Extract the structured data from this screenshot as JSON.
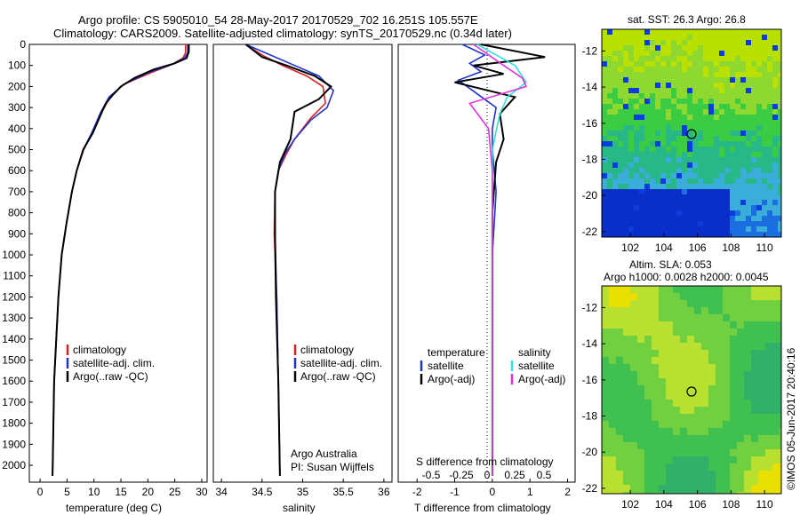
{
  "header": {
    "line1": "Argo profile: CS 5905010_54 28-May-2017 20170529_702 16.251S 105.557E",
    "line2": "Climatology: CARS2009. Satellite-adjusted climatology: synTS_20170529.nc (0.34d later)"
  },
  "chart_data": [
    {
      "type": "line",
      "panel": "temperature",
      "xlabel": "temperature (deg C)",
      "ylabel": "",
      "xlim": [
        -2,
        31
      ],
      "ylim": [
        2080,
        0
      ],
      "y_reversed": true,
      "x_ticks": [
        "0",
        "5",
        "10",
        "15",
        "20",
        "25",
        "30"
      ],
      "y_ticks": [
        "0",
        "100",
        "200",
        "300",
        "400",
        "500",
        "600",
        "700",
        "800",
        "900",
        "1000",
        "1100",
        "1200",
        "1300",
        "1400",
        "1500",
        "1600",
        "1700",
        "1800",
        "1900",
        "2000"
      ],
      "legend": [
        "climatology",
        "satellite-adj. clim.",
        "Argo(..raw -QC)"
      ],
      "series": [
        {
          "name": "climatology",
          "color": "#dd2222",
          "x": [
            27.0,
            27.0,
            26.5,
            24.5,
            20.5,
            15.5,
            13.0,
            11.5,
            9.7,
            8.1,
            6.8,
            5.9,
            4.9,
            4.0,
            3.4,
            2.6,
            2.3
          ],
          "y": [
            0,
            40,
            65,
            95,
            135,
            190,
            250,
            320,
            420,
            500,
            600,
            700,
            850,
            1000,
            1200,
            1600,
            2050
          ]
        },
        {
          "name": "satellite-adj. clim.",
          "color": "#1f33cc",
          "x": [
            27.4,
            27.4,
            26.8,
            24.5,
            20.0,
            15.5,
            12.8,
            11.3,
            9.6,
            8.0,
            6.8,
            5.9,
            4.9,
            4.0,
            3.4,
            2.6,
            2.3
          ],
          "y": [
            0,
            40,
            65,
            95,
            135,
            190,
            250,
            320,
            420,
            500,
            600,
            700,
            850,
            1000,
            1200,
            1600,
            2050
          ]
        },
        {
          "name": "Argo(..raw -QC)",
          "color": "#000000",
          "x": [
            27.6,
            27.6,
            27.2,
            25.0,
            21.0,
            17.5,
            15.0,
            13.5,
            12.2,
            11.5,
            9.8,
            8.0,
            6.8,
            5.9,
            4.9,
            4.0,
            3.4,
            2.6,
            2.3
          ],
          "y": [
            0,
            35,
            65,
            90,
            120,
            160,
            200,
            240,
            280,
            320,
            420,
            500,
            600,
            700,
            850,
            1000,
            1200,
            1600,
            2050
          ]
        }
      ]
    },
    {
      "type": "line",
      "panel": "salinity",
      "xlabel": "salinity",
      "xlim": [
        33.9,
        36.1
      ],
      "ylim": [
        2080,
        0
      ],
      "y_reversed": true,
      "x_ticks": [
        "34",
        "34.5",
        "35",
        "35.5",
        "36"
      ],
      "legend": [
        "climatology",
        "satellite-adj. clim.",
        "Argo(..raw -QC)"
      ],
      "annotations": [
        "Argo Australia",
        "PI: Susan Wijffels"
      ],
      "series": [
        {
          "name": "climatology",
          "color": "#dd2222",
          "x": [
            34.3,
            34.5,
            34.75,
            35.05,
            35.25,
            35.28,
            35.1,
            34.9,
            34.8,
            34.7,
            34.66,
            34.65,
            34.68,
            34.7,
            34.72
          ],
          "y": [
            0,
            50,
            100,
            150,
            200,
            280,
            350,
            450,
            520,
            600,
            700,
            900,
            1200,
            1600,
            2050
          ]
        },
        {
          "name": "satellite-adj. clim.",
          "color": "#1f33cc",
          "x": [
            34.3,
            34.6,
            34.9,
            35.2,
            35.38,
            35.3,
            35.1,
            34.9,
            34.78,
            34.7,
            34.66,
            34.66,
            34.68,
            34.7,
            34.72
          ],
          "y": [
            0,
            50,
            100,
            150,
            220,
            300,
            360,
            450,
            520,
            600,
            700,
            900,
            1200,
            1600,
            2050
          ]
        },
        {
          "name": "Argo(..raw -QC)",
          "color": "#000000",
          "x": [
            34.3,
            34.5,
            34.8,
            35.15,
            35.35,
            35.2,
            34.9,
            34.85,
            34.72,
            34.66,
            34.66,
            34.67,
            34.7,
            34.72
          ],
          "y": [
            0,
            60,
            100,
            150,
            200,
            260,
            320,
            450,
            560,
            700,
            900,
            1200,
            1600,
            2050
          ]
        }
      ]
    },
    {
      "type": "line",
      "panel": "difference",
      "xlabel": "T difference from climatology",
      "x2label": "S difference from climatology",
      "xlim": [
        -2.5,
        2.2
      ],
      "ylim": [
        2080,
        0
      ],
      "y_reversed": true,
      "x_ticks": [
        "-2",
        "-1",
        "0",
        "1",
        "2"
      ],
      "x2_ticks": [
        "-0.5",
        "-0.25",
        "0",
        "0.25",
        "0.5"
      ],
      "legend_headers": [
        "temperature",
        "salinity"
      ],
      "legend": [
        "satellite",
        "Argo(-adj)",
        "satellite",
        "Argo(-adj)"
      ],
      "series": [
        {
          "name": "satellite",
          "group": "temperature",
          "color": "#1f33cc",
          "x": [
            -0.8,
            -0.2,
            -0.6,
            -0.3,
            -0.9,
            0.1,
            0.0,
            0.0,
            0.1,
            0.0,
            0.0,
            0.0
          ],
          "y": [
            0,
            50,
            90,
            130,
            170,
            300,
            400,
            500,
            700,
            1000,
            1500,
            2050
          ]
        },
        {
          "name": "Argo(-adj)",
          "group": "temperature",
          "color": "#000000",
          "x": [
            -0.3,
            1.4,
            -0.5,
            0.3,
            -1.0,
            0.6,
            0.2,
            0.3,
            0.1,
            0.0,
            0.0,
            0.0
          ],
          "y": [
            0,
            60,
            100,
            140,
            180,
            250,
            330,
            450,
            560,
            800,
            1200,
            2050
          ]
        },
        {
          "name": "satellite",
          "group": "salinity",
          "color": "#33e0e0",
          "x": [
            -0.4,
            0.6,
            0.9,
            0.4,
            0.2,
            0.0,
            0.0,
            0.0,
            0.0
          ],
          "y": [
            0,
            100,
            180,
            250,
            330,
            500,
            700,
            1200,
            2050
          ]
        },
        {
          "name": "Argo(-adj)",
          "group": "salinity",
          "color": "#dd33dd",
          "x": [
            -0.5,
            0.3,
            0.8,
            0.9,
            -0.6,
            -0.1,
            0.0,
            0.0
          ],
          "y": [
            0,
            100,
            160,
            200,
            280,
            400,
            600,
            2050
          ]
        }
      ]
    },
    {
      "type": "heatmap",
      "panel": "sst_map",
      "title": "sat. SST: 26.3  Argo: 26.8",
      "xlim": [
        100.3,
        111
      ],
      "ylim": [
        -22.3,
        -10.8
      ],
      "x_ticks": [
        "102",
        "104",
        "106",
        "108",
        "110"
      ],
      "y_ticks": [
        "-12",
        "-14",
        "-16",
        "-18",
        "-20",
        "-22"
      ],
      "marker": {
        "lon": 105.557,
        "lat": -16.251
      }
    },
    {
      "type": "heatmap",
      "panel": "sla_map",
      "title": "Altim. SLA: 0.053",
      "subtitle": "Argo h1000: 0.0028 h2000: 0.0045",
      "xlim": [
        100.3,
        111
      ],
      "ylim": [
        -22.3,
        -10.8
      ],
      "x_ticks": [
        "102",
        "104",
        "106",
        "108",
        "110"
      ],
      "y_ticks": [
        "-12",
        "-14",
        "-16",
        "-18",
        "-20",
        "-22"
      ],
      "marker": {
        "lon": 105.557,
        "lat": -16.251
      }
    }
  ],
  "side_note": "©IMOS 05-Jun-2017 20:40:16"
}
